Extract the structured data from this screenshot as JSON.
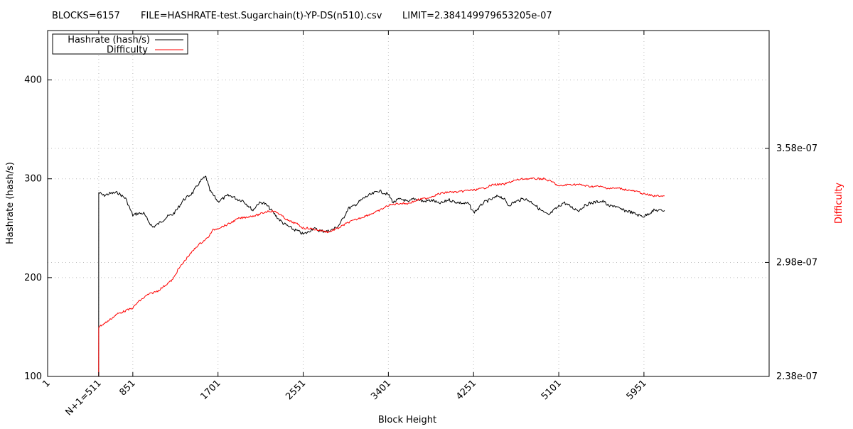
{
  "header": {
    "blocks": "BLOCKS=6157",
    "file": "FILE=HASHRATE-test.Sugarchain(t)-YP-DS(n510).csv",
    "limit": "LIMIT=2.384149979653205e-07"
  },
  "chart_data": {
    "type": "line",
    "xlabel": "Block Height",
    "ylabel": "Hashrate (hash/s)",
    "y2label": "Difficulty",
    "xlim": [
      1,
      7200
    ],
    "ylim": [
      100,
      450
    ],
    "y2lim": [
      2.38e-07,
      4.2e-07
    ],
    "x_ticks": [
      {
        "value": 1,
        "label": "1"
      },
      {
        "value": 511,
        "label": "N+1=511"
      },
      {
        "value": 851,
        "label": "851"
      },
      {
        "value": 1701,
        "label": "1701"
      },
      {
        "value": 2551,
        "label": "2551"
      },
      {
        "value": 3401,
        "label": "3401"
      },
      {
        "value": 4251,
        "label": "4251"
      },
      {
        "value": 5101,
        "label": "5101"
      },
      {
        "value": 5951,
        "label": "5951"
      }
    ],
    "y_ticks": [
      {
        "value": 100,
        "label": "100"
      },
      {
        "value": 200,
        "label": "200"
      },
      {
        "value": 300,
        "label": "300"
      },
      {
        "value": 400,
        "label": "400"
      }
    ],
    "y2_ticks": [
      {
        "value": 2.38e-07,
        "label": "2.38e-07"
      },
      {
        "value": 2.98e-07,
        "label": "2.98e-07"
      },
      {
        "value": 3.58e-07,
        "label": "3.58e-07"
      }
    ],
    "grid": true,
    "legend_position": "top-left",
    "series": [
      {
        "name": "Hashrate (hash/s)",
        "axis": "y",
        "color": "#000000",
        "points": [
          [
            1,
            100
          ],
          [
            510,
            100
          ],
          [
            511,
            286
          ],
          [
            560,
            283
          ],
          [
            620,
            285
          ],
          [
            700,
            286
          ],
          [
            780,
            280
          ],
          [
            800,
            275
          ],
          [
            851,
            263
          ],
          [
            900,
            265
          ],
          [
            960,
            265
          ],
          [
            1000,
            258
          ],
          [
            1050,
            251
          ],
          [
            1100,
            254
          ],
          [
            1150,
            258
          ],
          [
            1200,
            262
          ],
          [
            1251,
            264
          ],
          [
            1300,
            270
          ],
          [
            1350,
            278
          ],
          [
            1400,
            282
          ],
          [
            1450,
            286
          ],
          [
            1500,
            294
          ],
          [
            1550,
            300
          ],
          [
            1580,
            302
          ],
          [
            1620,
            288
          ],
          [
            1701,
            277
          ],
          [
            1750,
            280
          ],
          [
            1800,
            283
          ],
          [
            1850,
            282
          ],
          [
            1900,
            279
          ],
          [
            1950,
            278
          ],
          [
            2000,
            273
          ],
          [
            2050,
            268
          ],
          [
            2100,
            275
          ],
          [
            2150,
            276
          ],
          [
            2200,
            272
          ],
          [
            2251,
            266
          ],
          [
            2300,
            260
          ],
          [
            2351,
            255
          ],
          [
            2400,
            252
          ],
          [
            2450,
            249
          ],
          [
            2500,
            247
          ],
          [
            2551,
            244
          ],
          [
            2600,
            246
          ],
          [
            2650,
            250
          ],
          [
            2700,
            248
          ],
          [
            2751,
            247
          ],
          [
            2800,
            247
          ],
          [
            2850,
            249
          ],
          [
            2900,
            252
          ],
          [
            2951,
            260
          ],
          [
            3000,
            270
          ],
          [
            3050,
            272
          ],
          [
            3101,
            276
          ],
          [
            3151,
            280
          ],
          [
            3200,
            283
          ],
          [
            3251,
            285
          ],
          [
            3300,
            288
          ],
          [
            3351,
            286
          ],
          [
            3401,
            284
          ],
          [
            3450,
            276
          ],
          [
            3500,
            279
          ],
          [
            3551,
            279
          ],
          [
            3600,
            276
          ],
          [
            3651,
            280
          ],
          [
            3700,
            279
          ],
          [
            3751,
            277
          ],
          [
            3800,
            278
          ],
          [
            3851,
            278
          ],
          [
            3900,
            275
          ],
          [
            3951,
            276
          ],
          [
            4000,
            279
          ],
          [
            4051,
            277
          ],
          [
            4101,
            276
          ],
          [
            4151,
            275
          ],
          [
            4200,
            275
          ],
          [
            4251,
            266
          ],
          [
            4300,
            270
          ],
          [
            4351,
            276
          ],
          [
            4400,
            278
          ],
          [
            4451,
            280
          ],
          [
            4500,
            283
          ],
          [
            4551,
            280
          ],
          [
            4600,
            273
          ],
          [
            4651,
            276
          ],
          [
            4700,
            278
          ],
          [
            4751,
            280
          ],
          [
            4800,
            278
          ],
          [
            4851,
            275
          ],
          [
            4900,
            270
          ],
          [
            4951,
            266
          ],
          [
            5000,
            263
          ],
          [
            5051,
            268
          ],
          [
            5101,
            272
          ],
          [
            5151,
            276
          ],
          [
            5200,
            273
          ],
          [
            5251,
            270
          ],
          [
            5300,
            268
          ],
          [
            5351,
            272
          ],
          [
            5400,
            275
          ],
          [
            5451,
            276
          ],
          [
            5500,
            277
          ],
          [
            5551,
            277
          ],
          [
            5600,
            272
          ],
          [
            5651,
            273
          ],
          [
            5700,
            270
          ],
          [
            5751,
            268
          ],
          [
            5800,
            267
          ],
          [
            5851,
            265
          ],
          [
            5900,
            263
          ],
          [
            5951,
            262
          ],
          [
            6000,
            265
          ],
          [
            6050,
            268
          ],
          [
            6157,
            268
          ]
        ]
      },
      {
        "name": "Difficulty",
        "axis": "y2",
        "color": "#ff0000",
        "points": [
          [
            1,
            2.38e-07
          ],
          [
            510,
            2.38e-07
          ],
          [
            511,
            2.64e-07
          ],
          [
            600,
            2.67e-07
          ],
          [
            700,
            2.71e-07
          ],
          [
            800,
            2.73e-07
          ],
          [
            851,
            2.74e-07
          ],
          [
            900,
            2.77e-07
          ],
          [
            1000,
            2.81e-07
          ],
          [
            1100,
            2.83e-07
          ],
          [
            1200,
            2.87e-07
          ],
          [
            1251,
            2.89e-07
          ],
          [
            1300,
            2.94e-07
          ],
          [
            1400,
            3.01e-07
          ],
          [
            1500,
            3.07e-07
          ],
          [
            1600,
            3.11e-07
          ],
          [
            1650,
            3.15e-07
          ],
          [
            1701,
            3.16e-07
          ],
          [
            1800,
            3.18e-07
          ],
          [
            1900,
            3.21e-07
          ],
          [
            2000,
            3.22e-07
          ],
          [
            2100,
            3.23e-07
          ],
          [
            2200,
            3.25e-07
          ],
          [
            2251,
            3.25e-07
          ],
          [
            2300,
            3.24e-07
          ],
          [
            2400,
            3.2e-07
          ],
          [
            2500,
            3.18e-07
          ],
          [
            2551,
            3.16e-07
          ],
          [
            2600,
            3.16e-07
          ],
          [
            2700,
            3.15e-07
          ],
          [
            2800,
            3.14e-07
          ],
          [
            2900,
            3.16e-07
          ],
          [
            3000,
            3.19e-07
          ],
          [
            3101,
            3.21e-07
          ],
          [
            3200,
            3.23e-07
          ],
          [
            3301,
            3.25e-07
          ],
          [
            3401,
            3.28e-07
          ],
          [
            3500,
            3.29e-07
          ],
          [
            3600,
            3.29e-07
          ],
          [
            3700,
            3.31e-07
          ],
          [
            3800,
            3.32e-07
          ],
          [
            3900,
            3.34e-07
          ],
          [
            4000,
            3.35e-07
          ],
          [
            4101,
            3.35e-07
          ],
          [
            4200,
            3.36e-07
          ],
          [
            4251,
            3.36e-07
          ],
          [
            4351,
            3.37e-07
          ],
          [
            4451,
            3.39e-07
          ],
          [
            4551,
            3.39e-07
          ],
          [
            4651,
            3.41e-07
          ],
          [
            4751,
            3.42e-07
          ],
          [
            4851,
            3.42e-07
          ],
          [
            4951,
            3.42e-07
          ],
          [
            5051,
            3.4e-07
          ],
          [
            5101,
            3.38e-07
          ],
          [
            5200,
            3.39e-07
          ],
          [
            5300,
            3.39e-07
          ],
          [
            5400,
            3.38e-07
          ],
          [
            5500,
            3.38e-07
          ],
          [
            5600,
            3.37e-07
          ],
          [
            5700,
            3.37e-07
          ],
          [
            5800,
            3.36e-07
          ],
          [
            5900,
            3.35e-07
          ],
          [
            5951,
            3.34e-07
          ],
          [
            6050,
            3.33e-07
          ],
          [
            6157,
            3.33e-07
          ]
        ]
      }
    ]
  }
}
